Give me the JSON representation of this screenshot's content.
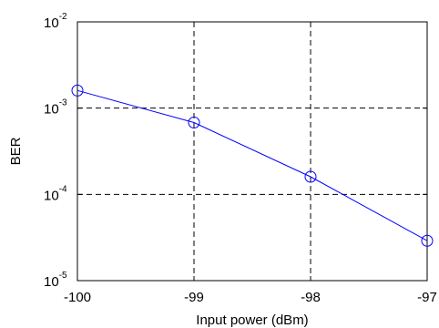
{
  "chart_data": {
    "type": "line",
    "title": "",
    "xlabel": "Input power (dBm)",
    "ylabel": "BER",
    "xlim": [
      -100,
      -97
    ],
    "ylim": [
      1e-05,
      0.01
    ],
    "yscale": "log",
    "grid": true,
    "x_ticks": [
      "-100",
      "-99",
      "-98",
      "-97"
    ],
    "y_ticks": [
      {
        "value": 1e-05,
        "base": "10",
        "exp": "-5"
      },
      {
        "value": 0.0001,
        "base": "10",
        "exp": "-4"
      },
      {
        "value": 0.001,
        "base": "10",
        "exp": "-3"
      },
      {
        "value": 0.01,
        "base": "10",
        "exp": "-2"
      }
    ],
    "series": [
      {
        "color": "#0000ff",
        "marker": "circle",
        "x": [
          -100,
          -99,
          -98,
          -97
        ],
        "y": [
          0.0016,
          0.00068,
          0.00016,
          2.9e-05
        ]
      }
    ]
  }
}
